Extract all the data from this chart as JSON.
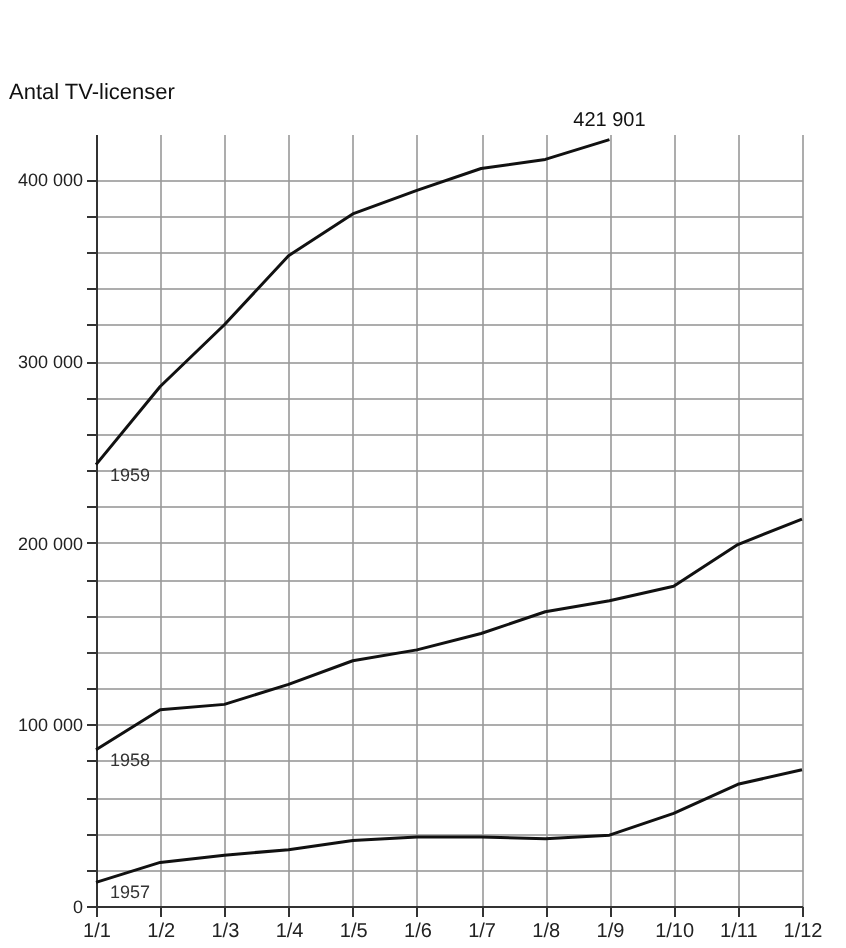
{
  "chart_data": {
    "type": "line",
    "ylabel": "Antal TV-licenser",
    "categories": [
      "1/1",
      "1/2",
      "1/3",
      "1/4",
      "1/5",
      "1/6",
      "1/7",
      "1/8",
      "1/9",
      "1/10",
      "1/11",
      "1/12"
    ],
    "series": [
      {
        "name": "1959",
        "color": "#111111",
        "values": [
          243000,
          286000,
          320000,
          358000,
          381000,
          394000,
          406000,
          411000,
          421901,
          null,
          null,
          null
        ]
      },
      {
        "name": "1958",
        "color": "#111111",
        "values": [
          86000,
          108000,
          111000,
          122000,
          135000,
          141000,
          150000,
          162000,
          168000,
          176000,
          199000,
          213000
        ]
      },
      {
        "name": "1957",
        "color": "#111111",
        "values": [
          13000,
          24000,
          28000,
          31000,
          36000,
          38000,
          38000,
          37000,
          39000,
          51000,
          67000,
          75000
        ]
      }
    ],
    "ylim": [
      0,
      425000
    ],
    "yticks": [
      {
        "value": 0,
        "label": "0"
      },
      {
        "value": 20000,
        "label": null
      },
      {
        "value": 40000,
        "label": null
      },
      {
        "value": 60000,
        "label": null
      },
      {
        "value": 80000,
        "label": null
      },
      {
        "value": 100000,
        "label": "100 000"
      },
      {
        "value": 120000,
        "label": null
      },
      {
        "value": 140000,
        "label": null
      },
      {
        "value": 160000,
        "label": null
      },
      {
        "value": 180000,
        "label": null
      },
      {
        "value": 200000,
        "label": "200 000"
      },
      {
        "value": 220000,
        "label": null
      },
      {
        "value": 240000,
        "label": null
      },
      {
        "value": 260000,
        "label": null
      },
      {
        "value": 280000,
        "label": null
      },
      {
        "value": 300000,
        "label": "300 000"
      },
      {
        "value": 320000,
        "label": null
      },
      {
        "value": 340000,
        "label": null
      },
      {
        "value": 360000,
        "label": null
      },
      {
        "value": 380000,
        "label": null
      },
      {
        "value": 400000,
        "label": "400 000"
      }
    ],
    "grid": true,
    "legend": false,
    "marker": "none",
    "line_style": "solid",
    "annotations": [
      {
        "text": "421 901",
        "x": "1/9",
        "y": 421901
      }
    ]
  }
}
